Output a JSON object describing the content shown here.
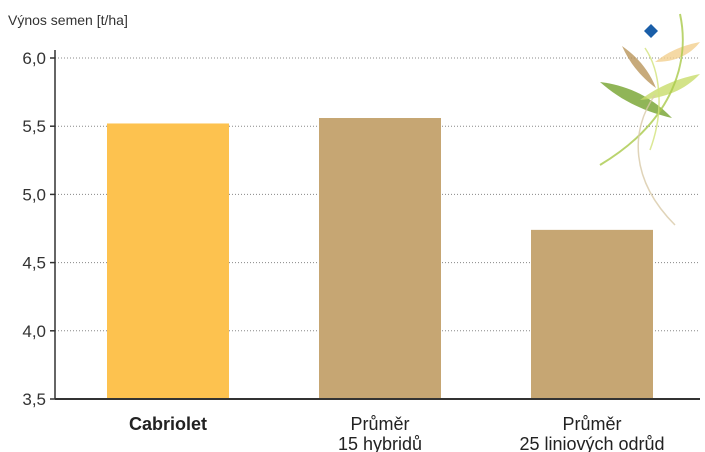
{
  "chart_data": {
    "type": "bar",
    "ylabel": "Výnos semen [t/ha]",
    "ylim": [
      3.5,
      6.0
    ],
    "yticks": [
      "3,5",
      "4,0",
      "4,5",
      "5,0",
      "5,5",
      "6,0"
    ],
    "ytick_values": [
      3.5,
      4.0,
      4.5,
      5.0,
      5.5,
      6.0
    ],
    "grid": "horizontal dotted",
    "categories": [
      {
        "lines": [
          "Cabriolet"
        ],
        "bold": true
      },
      {
        "lines": [
          "Průměr",
          "15 hybridů"
        ],
        "bold": false
      },
      {
        "lines": [
          "Průměr",
          "25 liniových odrůd"
        ],
        "bold": false
      }
    ],
    "values": [
      5.52,
      5.56,
      4.74
    ],
    "colors": {
      "highlight_bar": "#FDC24F",
      "bar": "#C6A673",
      "axis": "#333333",
      "grid": "#888888"
    }
  },
  "decoration": {
    "name": "leaf-logo",
    "diamond_color": "#1A5EA8"
  }
}
